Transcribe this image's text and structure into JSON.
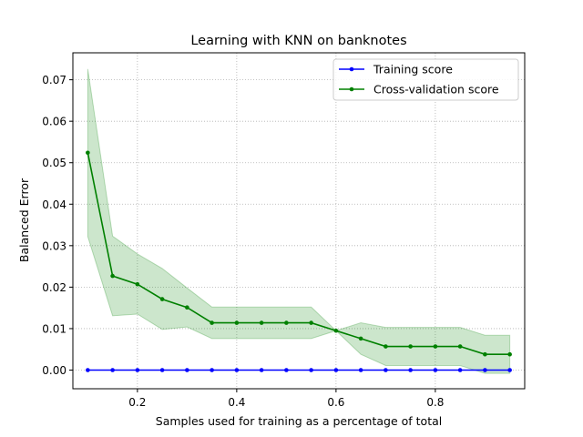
{
  "chart_data": {
    "type": "line",
    "title": "Learning with KNN on banknotes",
    "xlabel": "Samples used for training as a percentage of total",
    "ylabel": "Balanced Error",
    "xlim": [
      0.07,
      0.98
    ],
    "ylim": [
      -0.0045,
      0.0765
    ],
    "xticks": [
      0.2,
      0.4,
      0.6,
      0.8
    ],
    "xtick_labels": [
      "0.2",
      "0.4",
      "0.6",
      "0.8"
    ],
    "yticks": [
      0.0,
      0.01,
      0.02,
      0.03,
      0.04,
      0.05,
      0.06,
      0.07
    ],
    "ytick_labels": [
      "0.00",
      "0.01",
      "0.02",
      "0.03",
      "0.04",
      "0.05",
      "0.06",
      "0.07"
    ],
    "grid": true,
    "legend_position": "top-right",
    "x": [
      0.1,
      0.15,
      0.2,
      0.25,
      0.3,
      0.35,
      0.4,
      0.45,
      0.5,
      0.55,
      0.6,
      0.65,
      0.7,
      0.75,
      0.8,
      0.85,
      0.9,
      0.95
    ],
    "series": [
      {
        "name": "Training score",
        "color": "#0000ff",
        "values": [
          0,
          0,
          0,
          0,
          0,
          0,
          0,
          0,
          0,
          0,
          0,
          0,
          0,
          0,
          0,
          0,
          0,
          0
        ]
      },
      {
        "name": "Cross-validation score",
        "color": "#008000",
        "values": [
          0.0524,
          0.0227,
          0.0207,
          0.0171,
          0.0151,
          0.0114,
          0.0114,
          0.0114,
          0.0114,
          0.0114,
          0.0095,
          0.0076,
          0.0057,
          0.0057,
          0.0057,
          0.0057,
          0.0038,
          0.0038
        ],
        "band_color": "#008000",
        "band_upper": [
          0.0726,
          0.0323,
          0.028,
          0.0245,
          0.0198,
          0.0152,
          0.0152,
          0.0152,
          0.0152,
          0.0152,
          0.0095,
          0.0114,
          0.0103,
          0.0103,
          0.0103,
          0.0103,
          0.0084,
          0.0084
        ],
        "band_lower": [
          0.0322,
          0.0131,
          0.0135,
          0.0098,
          0.0104,
          0.0076,
          0.0076,
          0.0076,
          0.0076,
          0.0076,
          0.0095,
          0.0038,
          0.0011,
          0.0011,
          0.0011,
          0.0011,
          -0.0008,
          -0.0008
        ]
      }
    ]
  }
}
